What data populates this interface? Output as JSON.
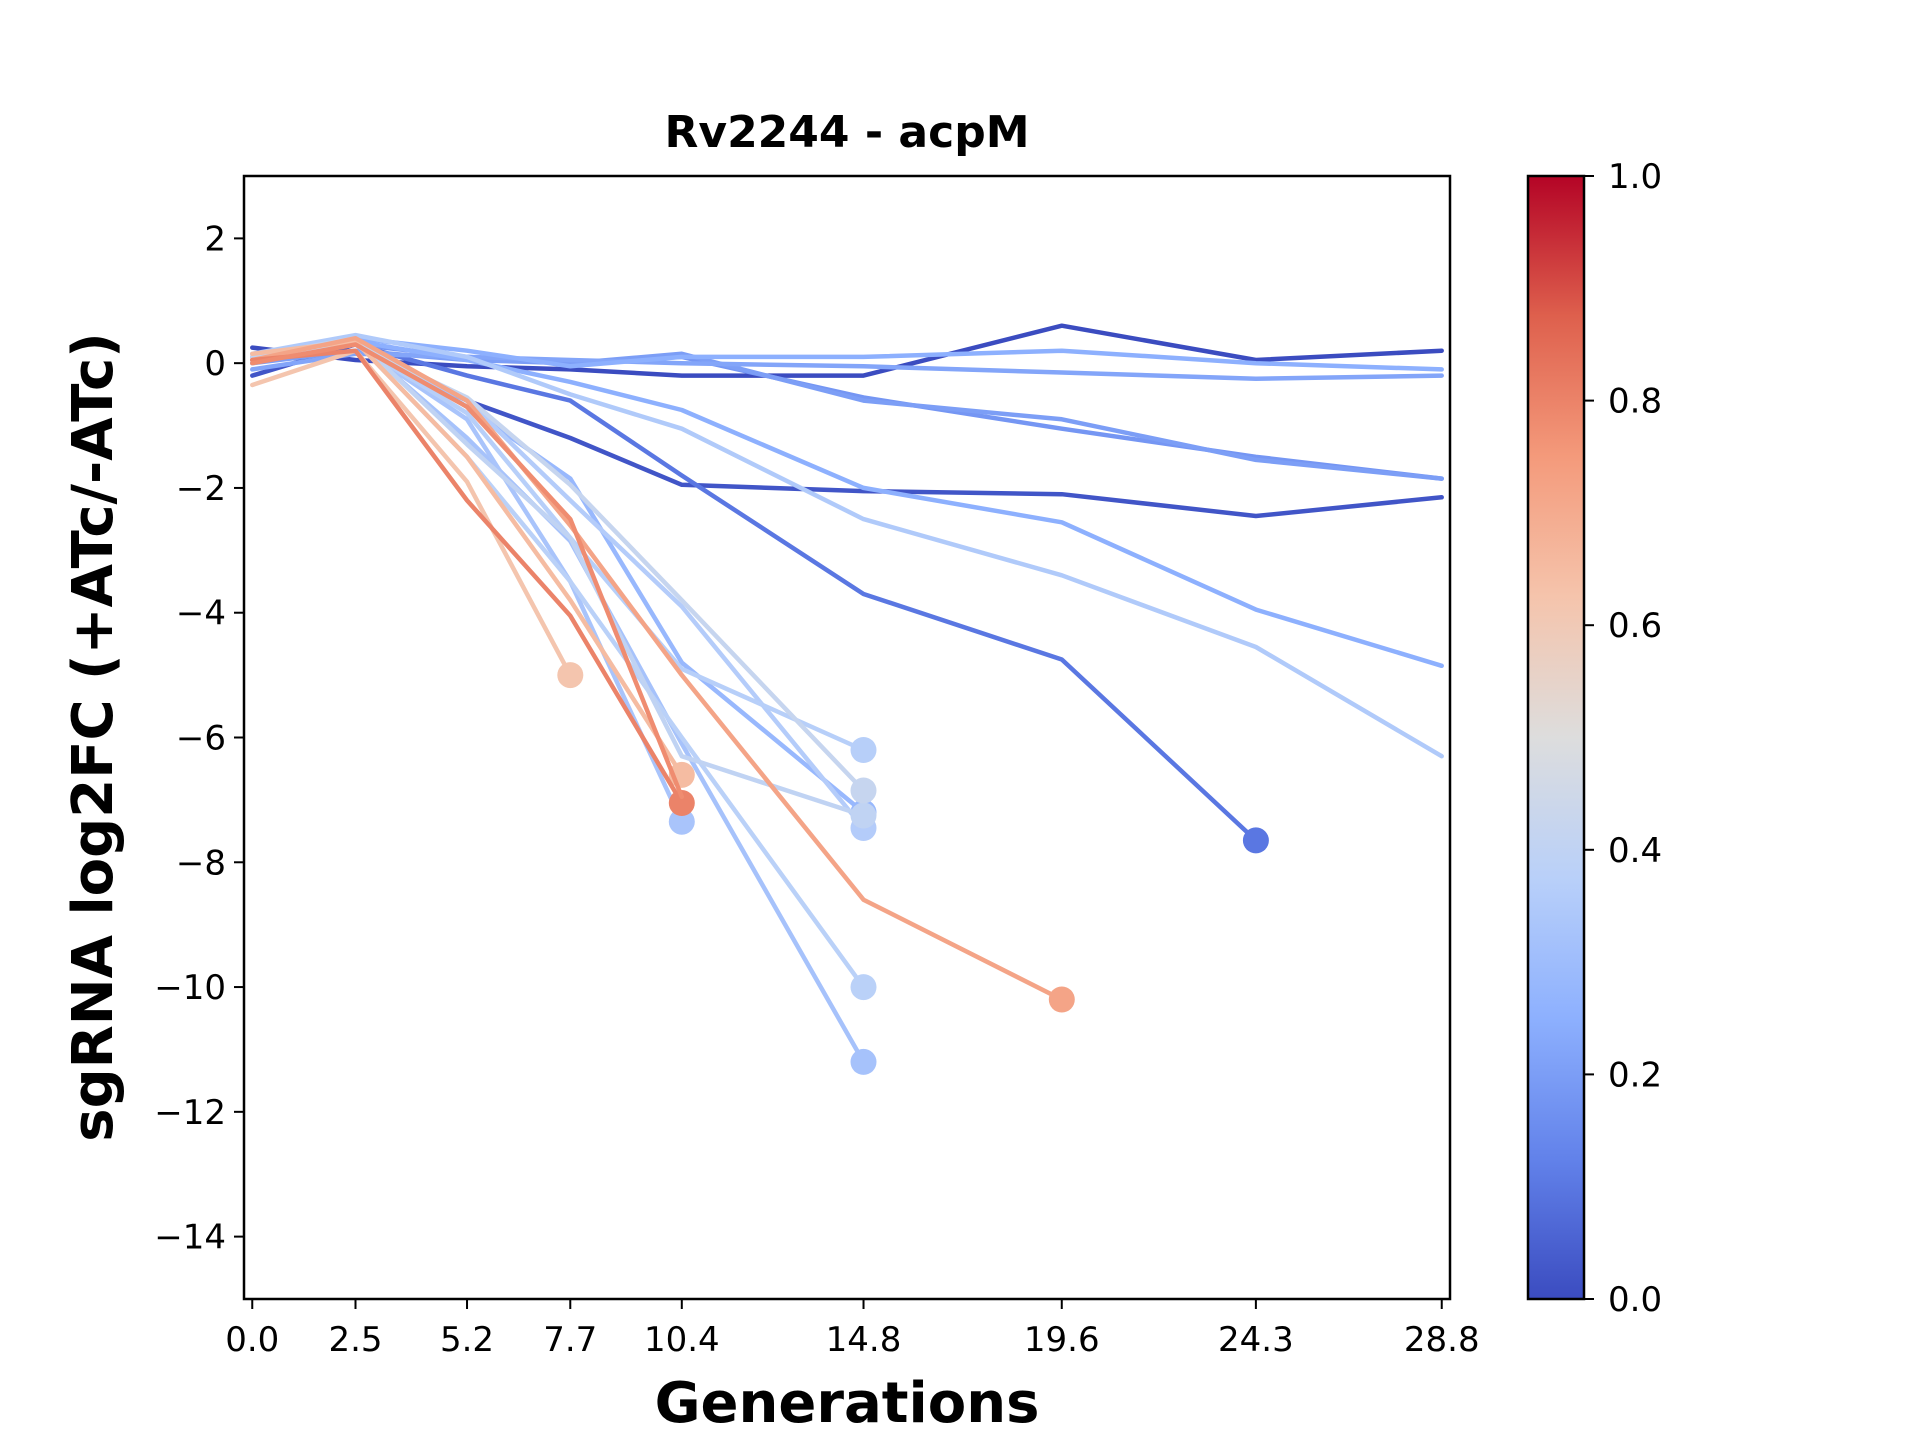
{
  "chart_data": {
    "type": "line",
    "title": "Rv2244 - acpM",
    "xlabel": "Generations",
    "ylabel": "sgRNA log2FC (+ATc/-ATc)",
    "xlim": [
      -0.2,
      29.0
    ],
    "ylim": [
      -15,
      3
    ],
    "x_ticks": [
      0.0,
      2.5,
      5.2,
      7.7,
      10.4,
      14.8,
      19.6,
      24.3,
      28.8
    ],
    "x_tick_labels": [
      "0.0",
      "2.5",
      "5.2",
      "7.7",
      "10.4",
      "14.8",
      "19.6",
      "24.3",
      "28.8"
    ],
    "y_ticks": [
      2,
      0,
      -2,
      -4,
      -6,
      -8,
      -10,
      -12,
      -14
    ],
    "y_tick_labels": [
      "2",
      "0",
      "−2",
      "−4",
      "−6",
      "−8",
      "−10",
      "−12",
      "−14"
    ],
    "grid": false,
    "colorbar": {
      "colormap": "coolwarm",
      "range": [
        0.0,
        1.0
      ],
      "ticks": [
        0.0,
        0.2,
        0.4,
        0.6,
        0.8,
        1.0
      ],
      "tick_labels": [
        "0.0",
        "0.2",
        "0.4",
        "0.6",
        "0.8",
        "1.0"
      ],
      "stops": [
        "#3b4cc0",
        "#6282ea",
        "#8db0fe",
        "#b9d0f9",
        "#dddddd",
        "#f5c4ac",
        "#f49a7b",
        "#de604d",
        "#b40426"
      ]
    },
    "series": [
      {
        "color_value": 0.0,
        "x": [
          0.0,
          2.5,
          5.2,
          7.7,
          10.4,
          14.8,
          19.6,
          24.3,
          28.8
        ],
        "y": [
          0.25,
          0.05,
          -0.05,
          -0.1,
          -0.2,
          -0.2,
          0.6,
          0.05,
          0.2
        ],
        "end_marker": false
      },
      {
        "color_value": 0.02,
        "x": [
          0.0,
          2.5,
          5.2,
          7.7,
          10.4,
          14.8,
          19.6,
          24.3,
          28.8
        ],
        "y": [
          -0.2,
          0.3,
          -0.6,
          -1.2,
          -1.95,
          -2.05,
          -2.1,
          -2.45,
          -2.15
        ],
        "end_marker": false
      },
      {
        "color_value": 0.1,
        "x": [
          0.0,
          2.5,
          5.2,
          7.7,
          10.4,
          14.8,
          19.6,
          24.3
        ],
        "y": [
          0.1,
          0.3,
          -0.2,
          -0.6,
          -1.8,
          -3.7,
          -4.75,
          -7.65
        ],
        "end_marker": true
      },
      {
        "color_value": 0.18,
        "x": [
          0.0,
          2.5,
          5.2,
          7.7,
          10.4,
          14.8,
          19.6,
          24.3,
          28.8
        ],
        "y": [
          0.05,
          0.3,
          0.1,
          0.0,
          0.1,
          -0.55,
          -1.05,
          -1.5,
          -1.85
        ],
        "end_marker": false
      },
      {
        "color_value": 0.2,
        "x": [
          0.0,
          2.5,
          5.2,
          7.7,
          10.4,
          14.8,
          19.6,
          24.3,
          28.8
        ],
        "y": [
          0.0,
          0.2,
          0.05,
          0.0,
          0.15,
          -0.6,
          -0.9,
          -1.55,
          -1.85
        ],
        "end_marker": false
      },
      {
        "color_value": 0.22,
        "x": [
          0.0,
          2.5,
          5.2,
          7.7,
          10.4,
          14.8,
          19.6,
          24.3,
          28.8
        ],
        "y": [
          -0.1,
          0.15,
          0.1,
          0.05,
          0.0,
          -0.05,
          -0.15,
          -0.25,
          -0.2
        ],
        "end_marker": false
      },
      {
        "color_value": 0.25,
        "x": [
          0.0,
          2.5,
          5.2,
          7.7,
          10.4,
          14.8,
          19.6,
          24.3,
          28.8
        ],
        "y": [
          0.0,
          0.4,
          0.2,
          -0.05,
          0.1,
          0.1,
          0.2,
          0.0,
          -0.1
        ],
        "end_marker": false
      },
      {
        "color_value": 0.25,
        "x": [
          0.0,
          2.5,
          5.2,
          7.7,
          10.4,
          14.8,
          19.6,
          24.3,
          28.8
        ],
        "y": [
          0.1,
          0.35,
          0.05,
          -0.3,
          -0.75,
          -2.0,
          -2.55,
          -3.95,
          -4.85
        ],
        "end_marker": false
      },
      {
        "color_value": 0.28,
        "x": [
          0.0,
          2.5,
          5.2,
          7.7,
          10.4,
          14.8
        ],
        "y": [
          0.0,
          0.4,
          -0.7,
          -1.85,
          -4.8,
          -7.2
        ],
        "end_marker": true
      },
      {
        "color_value": 0.32,
        "x": [
          0.0,
          2.5,
          5.2,
          7.7,
          10.4,
          14.8
        ],
        "y": [
          0.05,
          0.35,
          -1.2,
          -2.85,
          -6.1,
          -11.2
        ],
        "end_marker": true
      },
      {
        "color_value": 0.33,
        "x": [
          0.0,
          2.5,
          5.2,
          7.7,
          10.4
        ],
        "y": [
          0.1,
          0.3,
          -0.9,
          -3.5,
          -7.35
        ],
        "end_marker": true
      },
      {
        "color_value": 0.35,
        "x": [
          0.0,
          2.5,
          5.2,
          7.7,
          10.4,
          14.8,
          19.6,
          24.3,
          28.8
        ],
        "y": [
          0.15,
          0.45,
          0.1,
          -0.5,
          -1.05,
          -2.5,
          -3.4,
          -4.55,
          -6.3
        ],
        "end_marker": false
      },
      {
        "color_value": 0.36,
        "x": [
          0.0,
          2.5,
          5.2,
          7.7,
          10.4,
          14.8
        ],
        "y": [
          0.05,
          0.35,
          -0.6,
          -2.2,
          -3.9,
          -7.45
        ],
        "end_marker": true
      },
      {
        "color_value": 0.37,
        "x": [
          0.0,
          2.5,
          5.2,
          7.7,
          10.4,
          14.8
        ],
        "y": [
          0.1,
          0.3,
          -0.8,
          -2.8,
          -4.9,
          -6.2
        ],
        "end_marker": true
      },
      {
        "color_value": 0.38,
        "x": [
          0.0,
          2.5,
          5.2,
          7.7,
          10.4,
          14.8
        ],
        "y": [
          0.0,
          0.35,
          -1.5,
          -3.5,
          -6.0,
          -10.0
        ],
        "end_marker": true
      },
      {
        "color_value": 0.4,
        "x": [
          0.0,
          2.5,
          5.2,
          7.7,
          10.4,
          14.8
        ],
        "y": [
          0.1,
          0.4,
          -1.3,
          -2.8,
          -6.3,
          -7.25
        ],
        "end_marker": true
      },
      {
        "color_value": 0.42,
        "x": [
          0.0,
          2.5,
          5.2,
          7.7,
          10.4,
          14.8
        ],
        "y": [
          0.05,
          0.3,
          -0.55,
          -1.95,
          -3.8,
          -6.85
        ],
        "end_marker": true
      },
      {
        "color_value": 0.62,
        "x": [
          0.0,
          2.5,
          5.2,
          7.7
        ],
        "y": [
          -0.35,
          0.2,
          -1.9,
          -5.0
        ],
        "end_marker": true
      },
      {
        "color_value": 0.65,
        "x": [
          0.0,
          2.5,
          5.2,
          7.7,
          10.4
        ],
        "y": [
          0.15,
          0.35,
          -1.5,
          -3.8,
          -6.6
        ],
        "end_marker": true
      },
      {
        "color_value": 0.72,
        "x": [
          0.0,
          2.5,
          5.2,
          7.7,
          10.4,
          14.8,
          19.6
        ],
        "y": [
          0.05,
          0.4,
          -0.6,
          -2.6,
          -5.0,
          -8.6,
          -10.2
        ],
        "end_marker": true
      },
      {
        "color_value": 0.8,
        "x": [
          0.0,
          2.5,
          5.2,
          7.7,
          10.4
        ],
        "y": [
          0.05,
          0.2,
          -2.2,
          -4.05,
          -7.05
        ],
        "end_marker": true
      },
      {
        "color_value": 0.78,
        "x": [
          0.0,
          2.5,
          5.2,
          7.7,
          10.4
        ],
        "y": [
          0.0,
          0.3,
          -0.7,
          -2.5,
          -6.95
        ],
        "end_marker": false
      }
    ]
  }
}
